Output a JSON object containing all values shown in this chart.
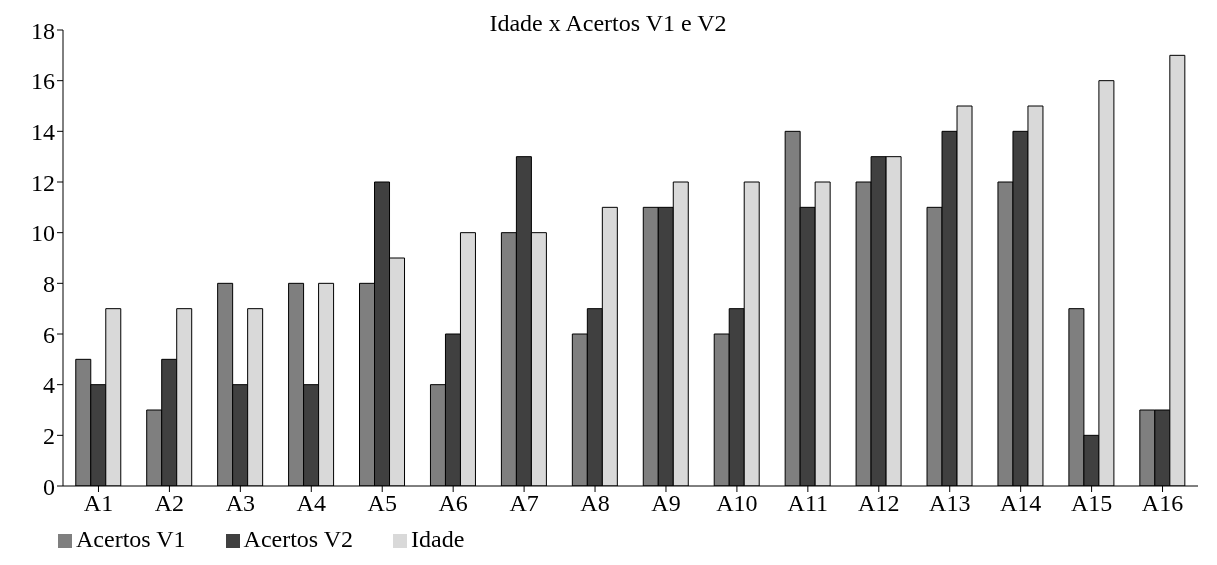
{
  "chart_data": {
    "type": "bar",
    "title": "Idade x Acertos V1 e V2",
    "categories": [
      "A1",
      "A2",
      "A3",
      "A4",
      "A5",
      "A6",
      "A7",
      "A8",
      "A9",
      "A10",
      "A11",
      "A12",
      "A13",
      "A14",
      "A15",
      "A16"
    ],
    "series": [
      {
        "name": "Acertos V1",
        "color": "#7f7f7f",
        "values": [
          5,
          3,
          8,
          8,
          8,
          4,
          10,
          6,
          11,
          6,
          14,
          12,
          11,
          12,
          7,
          3
        ]
      },
      {
        "name": "Acertos V2",
        "color": "#404040",
        "values": [
          4,
          5,
          4,
          4,
          12,
          6,
          13,
          7,
          11,
          7,
          11,
          13,
          14,
          14,
          2,
          3
        ]
      },
      {
        "name": "Idade",
        "color": "#d9d9d9",
        "values": [
          7,
          7,
          7,
          8,
          9,
          10,
          10,
          11,
          12,
          12,
          12,
          13,
          15,
          15,
          16,
          17
        ]
      }
    ],
    "ylim": [
      0,
      18
    ],
    "yticks": [
      0,
      2,
      4,
      6,
      8,
      10,
      12,
      14,
      16,
      18
    ],
    "grid": false,
    "legend": "bottom left"
  }
}
